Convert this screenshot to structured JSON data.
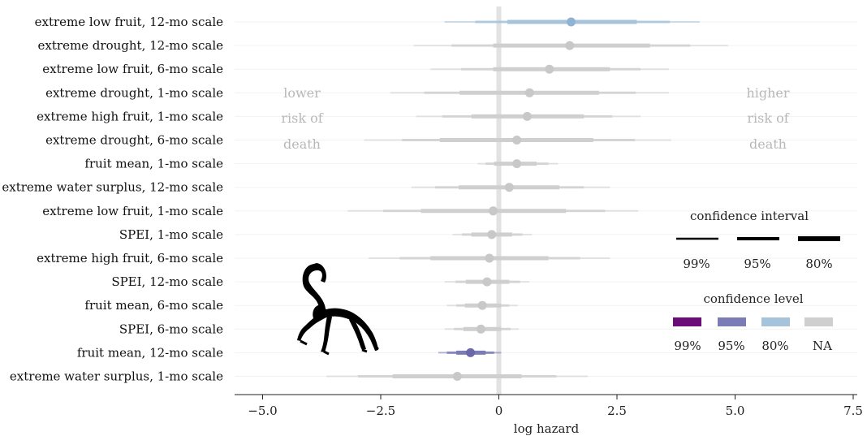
{
  "chart_data": {
    "type": "forest",
    "xlabel": "log hazard",
    "xlim": [
      -5.5,
      7.5
    ],
    "xticks": [
      -5.0,
      -2.5,
      0,
      2.5,
      5.0,
      7.5
    ],
    "xtick_labels": [
      "−5.0",
      "−2.5",
      "0",
      "2.5",
      "5.0",
      "7.5"
    ],
    "reference_line_x": 0,
    "rows": [
      {
        "label": "extreme low fruit, 12-mo scale",
        "estimate": 1.53,
        "ci80": [
          0.18,
          2.92
        ],
        "ci95": [
          -0.5,
          3.62
        ],
        "ci99": [
          -1.15,
          4.25
        ],
        "level": "80%"
      },
      {
        "label": "extreme drought, 12-mo scale",
        "estimate": 1.5,
        "ci80": [
          -0.12,
          3.2
        ],
        "ci95": [
          -1.0,
          4.05
        ],
        "ci99": [
          -1.8,
          4.85
        ],
        "level": "NA"
      },
      {
        "label": "extreme low fruit, 6-mo scale",
        "estimate": 1.07,
        "ci80": [
          -0.12,
          2.35
        ],
        "ci95": [
          -0.8,
          3.0
        ],
        "ci99": [
          -1.45,
          3.6
        ],
        "level": "NA"
      },
      {
        "label": "extreme drought, 1-mo scale",
        "estimate": 0.65,
        "ci80": [
          -0.83,
          2.12
        ],
        "ci95": [
          -1.58,
          2.9
        ],
        "ci99": [
          -2.3,
          3.6
        ],
        "level": "NA"
      },
      {
        "label": "extreme high fruit, 1-mo scale",
        "estimate": 0.6,
        "ci80": [
          -0.58,
          1.8
        ],
        "ci95": [
          -1.2,
          2.4
        ],
        "ci99": [
          -1.75,
          3.0
        ],
        "level": "NA"
      },
      {
        "label": "extreme drought, 6-mo scale",
        "estimate": 0.38,
        "ci80": [
          -1.25,
          2.0
        ],
        "ci95": [
          -2.05,
          2.88
        ],
        "ci99": [
          -2.85,
          3.65
        ],
        "level": "NA"
      },
      {
        "label": "fruit mean, 1-mo scale",
        "estimate": 0.38,
        "ci80": [
          -0.1,
          0.8
        ],
        "ci95": [
          -0.28,
          1.05
        ],
        "ci99": [
          -0.45,
          1.25
        ],
        "level": "NA"
      },
      {
        "label": "extreme water surplus, 12-mo scale",
        "estimate": 0.22,
        "ci80": [
          -0.85,
          1.28
        ],
        "ci95": [
          -1.35,
          1.8
        ],
        "ci99": [
          -1.85,
          2.35
        ],
        "level": "NA"
      },
      {
        "label": "extreme low fruit, 1-mo scale",
        "estimate": -0.12,
        "ci80": [
          -1.65,
          1.42
        ],
        "ci95": [
          -2.45,
          2.25
        ],
        "ci99": [
          -3.2,
          2.95
        ],
        "level": "NA"
      },
      {
        "label": "SPEI, 1-mo scale",
        "estimate": -0.15,
        "ci80": [
          -0.58,
          0.28
        ],
        "ci95": [
          -0.78,
          0.5
        ],
        "ci99": [
          -0.98,
          0.7
        ],
        "level": "NA"
      },
      {
        "label": "extreme high fruit, 6-mo scale",
        "estimate": -0.2,
        "ci80": [
          -1.45,
          1.05
        ],
        "ci95": [
          -2.1,
          1.72
        ],
        "ci99": [
          -2.75,
          2.35
        ],
        "level": "NA"
      },
      {
        "label": "SPEI, 12-mo scale",
        "estimate": -0.25,
        "ci80": [
          -0.7,
          0.22
        ],
        "ci95": [
          -0.92,
          0.45
        ],
        "ci99": [
          -1.15,
          0.65
        ],
        "level": "NA"
      },
      {
        "label": "fruit mean, 6-mo scale",
        "estimate": -0.35,
        "ci80": [
          -0.72,
          0.05
        ],
        "ci95": [
          -0.9,
          0.22
        ],
        "ci99": [
          -1.1,
          0.4
        ],
        "level": "NA"
      },
      {
        "label": "SPEI, 6-mo scale",
        "estimate": -0.38,
        "ci80": [
          -0.75,
          0.05
        ],
        "ci95": [
          -0.95,
          0.25
        ],
        "ci99": [
          -1.15,
          0.42
        ],
        "level": "NA"
      },
      {
        "label": "fruit mean, 12-mo scale",
        "estimate": -0.6,
        "ci80": [
          -0.9,
          -0.28
        ],
        "ci95": [
          -1.1,
          -0.1
        ],
        "ci99": [
          -1.28,
          0.05
        ],
        "level": "95%"
      },
      {
        "label": "extreme water surplus, 1-mo scale",
        "estimate": -0.88,
        "ci80": [
          -2.25,
          0.48
        ],
        "ci95": [
          -2.98,
          1.22
        ],
        "ci99": [
          -3.65,
          1.88
        ],
        "level": "NA"
      }
    ],
    "annotation_left": [
      "lower",
      "risk of",
      "death"
    ],
    "annotation_right": [
      "higher",
      "risk of",
      "death"
    ],
    "legend_interval": {
      "title": "confidence interval",
      "items": [
        "99%",
        "95%",
        "80%"
      ]
    },
    "legend_level": {
      "title": "confidence level",
      "items": [
        {
          "label": "99%",
          "color": "#6a0d7a"
        },
        {
          "label": "95%",
          "color": "#7b7bb5"
        },
        {
          "label": "80%",
          "color": "#a6c3dc"
        },
        {
          "label": "NA",
          "color": "#cfcfcf"
        }
      ]
    },
    "colors": {
      "na": "#cfcfcf",
      "level_80": "#a6c3dc",
      "level_95": "#7b7bb5",
      "level_99": "#6a0d7a",
      "annotation": "#b8b8b8",
      "gridline": "#f2f2f2",
      "zero_line": "#e2e2e2"
    },
    "grid": true,
    "legend_position": "right",
    "icon": "spider-monkey-silhouette-icon"
  }
}
